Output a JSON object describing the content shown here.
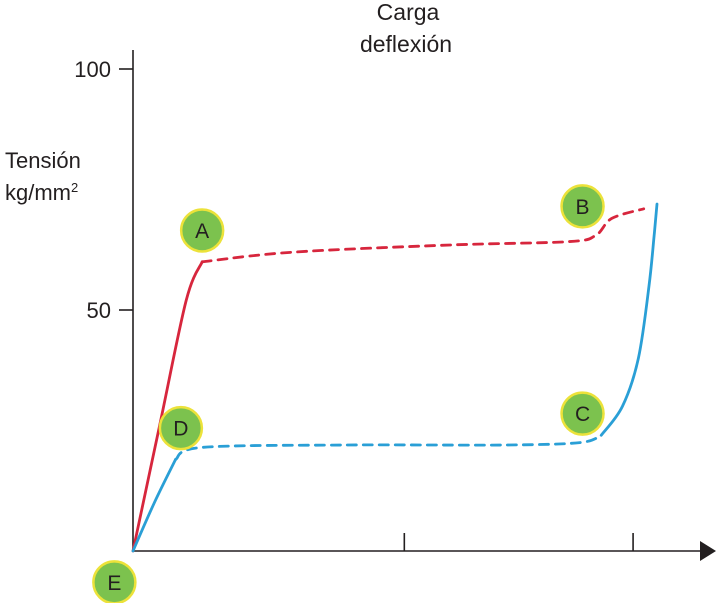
{
  "chart_data": {
    "type": "line",
    "title_lines": [
      "Carga",
      "deflexión"
    ],
    "ylabel": {
      "text": "Tensión",
      "unit_base": "kg/mm",
      "unit_sup": "2"
    },
    "ylim": [
      0,
      100
    ],
    "y_ticks": [
      50,
      100
    ],
    "xlim": [
      0,
      10
    ],
    "x_ticks": [
      5.1,
      9.4
    ],
    "grid": false,
    "series": [
      {
        "color": "#d7263d",
        "segments": [
          {
            "style": "solid",
            "points": [
              [
                0,
                0
              ],
              [
                0.5,
                26
              ],
              [
                1.0,
                52
              ],
              [
                1.3,
                60
              ]
            ]
          },
          {
            "style": "dashed",
            "points": [
              [
                1.3,
                60
              ],
              [
                3,
                62
              ],
              [
                6,
                63.5
              ],
              [
                8.2,
                64.2
              ],
              [
                8.7,
                65.5
              ],
              [
                9.0,
                69
              ],
              [
                9.6,
                71
              ]
            ]
          }
        ]
      },
      {
        "color": "#2a9fd6",
        "segments": [
          {
            "style": "solid",
            "points": [
              [
                0,
                0
              ],
              [
                0.4,
                10
              ],
              [
                0.8,
                19
              ]
            ]
          },
          {
            "style": "dashed",
            "points": [
              [
                0.8,
                19
              ],
              [
                1.3,
                21.5
              ],
              [
                4,
                22
              ],
              [
                7,
                22
              ],
              [
                8.4,
                22.5
              ],
              [
                8.8,
                24
              ]
            ]
          },
          {
            "style": "solid",
            "points": [
              [
                8.8,
                24
              ],
              [
                9.2,
                30
              ],
              [
                9.5,
                40
              ],
              [
                9.7,
                55
              ],
              [
                9.8,
                66
              ],
              [
                9.85,
                72
              ]
            ]
          }
        ]
      }
    ],
    "point_labels": [
      {
        "label": "A",
        "x": 1.3,
        "y": 66.5
      },
      {
        "label": "B",
        "x": 8.45,
        "y": 71.5
      },
      {
        "label": "C",
        "x": 8.45,
        "y": 28.5
      },
      {
        "label": "D",
        "x": 0.9,
        "y": 25.5
      },
      {
        "label": "E",
        "x": -0.35,
        "y": -6.5
      }
    ],
    "colors": {
      "axis": "#231f20",
      "marker_fill": "#7cc24e",
      "marker_stroke": "#ece23a"
    }
  }
}
